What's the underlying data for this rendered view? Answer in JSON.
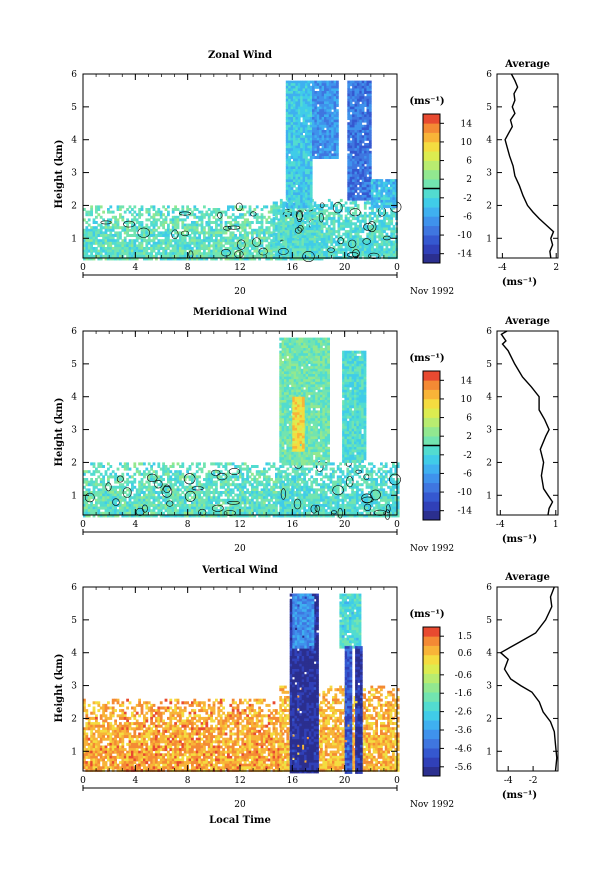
{
  "figure": {
    "date_label": "Nov 1992",
    "day_label": "20",
    "xlabel": "Local Time"
  },
  "chart_data": [
    {
      "type": "heatmap",
      "title": "Zonal Wind",
      "ylabel": "Height (km)",
      "xlabel": "",
      "x_ticks": [
        "0",
        "4",
        "8",
        "12",
        "16",
        "20",
        "0"
      ],
      "xlim": [
        0,
        24
      ],
      "y_ticks": [
        "1",
        "2",
        "3",
        "4",
        "5",
        "6"
      ],
      "ylim": [
        0.4,
        6.0
      ],
      "colorbar": {
        "unit_label": "(ms⁻¹)",
        "ticks": [
          "14",
          "10",
          "6",
          "2",
          "-2",
          "-6",
          "-10",
          "-14"
        ],
        "range": [
          -16,
          16
        ],
        "colors": [
          "#2b2f8f",
          "#3040b8",
          "#3558d0",
          "#3f76e0",
          "#3f92ec",
          "#3fb0f0",
          "#40cce8",
          "#52dcd0",
          "#72e4b0",
          "#92e890",
          "#b8ec70",
          "#dcec50",
          "#f4dc40",
          "#f8b438",
          "#f48a34",
          "#e84a30"
        ]
      },
      "contours": [
        0
      ],
      "regions": [
        {
          "x": [
            0,
            18.2
          ],
          "y": [
            0.4,
            2.0
          ],
          "value": 0,
          "texture": "scattered"
        },
        {
          "x": [
            14.5,
            24
          ],
          "y": [
            0.4,
            2.2
          ],
          "value": -1,
          "texture": "scattered"
        },
        {
          "x": [
            15.5,
            17.5
          ],
          "y": [
            2.0,
            5.8
          ],
          "value": -3,
          "texture": "columns"
        },
        {
          "x": [
            17.5,
            19.5
          ],
          "y": [
            3.5,
            5.8
          ],
          "value": -7,
          "texture": "columns"
        },
        {
          "x": [
            20.2,
            22.0
          ],
          "y": [
            2.2,
            5.8
          ],
          "value": -9,
          "texture": "columns"
        },
        {
          "x": [
            22.0,
            24
          ],
          "y": [
            2.0,
            2.8
          ],
          "value": -4,
          "texture": "columns"
        }
      ],
      "profile": {
        "title": "Average",
        "xlabel": "(ms⁻¹)",
        "x_ticks": [
          "-4",
          "2"
        ],
        "xlim": [
          -4.6,
          2.2
        ],
        "ylim": [
          0.4,
          6.0
        ],
        "y_ticks": [
          "1",
          "2",
          "3",
          "4",
          "5",
          "6"
        ],
        "points": [
          [
            1.4,
            0.4
          ],
          [
            1.3,
            0.6
          ],
          [
            1.6,
            0.8
          ],
          [
            1.4,
            1.0
          ],
          [
            1.7,
            1.2
          ],
          [
            0.9,
            1.4
          ],
          [
            0.1,
            1.6
          ],
          [
            -0.6,
            1.8
          ],
          [
            -1.2,
            2.0
          ],
          [
            -1.7,
            2.3
          ],
          [
            -2.1,
            2.6
          ],
          [
            -2.6,
            2.9
          ],
          [
            -2.8,
            3.2
          ],
          [
            -3.2,
            3.5
          ],
          [
            -3.5,
            3.8
          ],
          [
            -3.7,
            4.0
          ],
          [
            -3.3,
            4.2
          ],
          [
            -2.9,
            4.4
          ],
          [
            -3.1,
            4.6
          ],
          [
            -2.6,
            4.8
          ],
          [
            -2.9,
            5.0
          ],
          [
            -2.6,
            5.2
          ],
          [
            -2.7,
            5.4
          ],
          [
            -2.3,
            5.6
          ],
          [
            -2.6,
            5.8
          ],
          [
            -3.0,
            6.0
          ]
        ]
      }
    },
    {
      "type": "heatmap",
      "title": "Meridional Wind",
      "ylabel": "Height (km)",
      "xlabel": "",
      "x_ticks": [
        "0",
        "4",
        "8",
        "12",
        "16",
        "20",
        "0"
      ],
      "xlim": [
        0,
        24
      ],
      "y_ticks": [
        "1",
        "2",
        "3",
        "4",
        "5",
        "6"
      ],
      "ylim": [
        0.4,
        6.0
      ],
      "colorbar": {
        "unit_label": "(ms⁻¹)",
        "ticks": [
          "14",
          "10",
          "6",
          "2",
          "-2",
          "-6",
          "-10",
          "-14"
        ],
        "range": [
          -16,
          16
        ],
        "colors": [
          "#2b2f8f",
          "#3040b8",
          "#3558d0",
          "#3f76e0",
          "#3f92ec",
          "#3fb0f0",
          "#40cce8",
          "#52dcd0",
          "#72e4b0",
          "#92e890",
          "#b8ec70",
          "#dcec50",
          "#f4dc40",
          "#f8b438",
          "#f48a34",
          "#e84a30"
        ]
      },
      "contours": [
        0
      ],
      "regions": [
        {
          "x": [
            0,
            16.5
          ],
          "y": [
            0.4,
            2.0
          ],
          "value": 0,
          "texture": "scattered"
        },
        {
          "x": [
            15.0,
            24
          ],
          "y": [
            0.4,
            2.0
          ],
          "value": -1,
          "texture": "scattered"
        },
        {
          "x": [
            15.0,
            18.8
          ],
          "y": [
            2.0,
            5.8
          ],
          "value": 1,
          "texture": "columns"
        },
        {
          "x": [
            16.0,
            16.8
          ],
          "y": [
            2.4,
            4.0
          ],
          "value": 9,
          "texture": "columns"
        },
        {
          "x": [
            19.8,
            21.6
          ],
          "y": [
            2.0,
            5.4
          ],
          "value": -1,
          "texture": "columns"
        }
      ],
      "profile": {
        "title": "Average",
        "xlabel": "(ms⁻¹)",
        "x_ticks": [
          "-4",
          "1"
        ],
        "xlim": [
          -4.3,
          1.2
        ],
        "ylim": [
          0.4,
          6.0
        ],
        "y_ticks": [
          "1",
          "2",
          "3",
          "4",
          "5",
          "6"
        ],
        "points": [
          [
            0.3,
            0.4
          ],
          [
            0.4,
            0.6
          ],
          [
            0.7,
            0.8
          ],
          [
            0.3,
            1.0
          ],
          [
            -0.1,
            1.2
          ],
          [
            -0.3,
            1.6
          ],
          [
            -0.1,
            2.0
          ],
          [
            -0.4,
            2.4
          ],
          [
            0.1,
            2.8
          ],
          [
            0.4,
            3.0
          ],
          [
            0.0,
            3.3
          ],
          [
            -0.5,
            3.6
          ],
          [
            -0.5,
            4.0
          ],
          [
            -1.2,
            4.3
          ],
          [
            -2.0,
            4.6
          ],
          [
            -2.7,
            5.0
          ],
          [
            -3.3,
            5.4
          ],
          [
            -3.8,
            5.6
          ],
          [
            -3.5,
            5.7
          ],
          [
            -3.9,
            5.9
          ],
          [
            -3.4,
            6.0
          ]
        ]
      }
    },
    {
      "type": "heatmap",
      "title": "Vertical Wind",
      "ylabel": "Height (km)",
      "xlabel": "Local Time",
      "x_ticks": [
        "0",
        "4",
        "8",
        "12",
        "16",
        "20",
        "0"
      ],
      "xlim": [
        0,
        24
      ],
      "y_ticks": [
        "1",
        "2",
        "3",
        "4",
        "5",
        "6"
      ],
      "ylim": [
        0.4,
        6.0
      ],
      "colorbar": {
        "unit_label": "(ms⁻¹)",
        "ticks": [
          "1.5",
          "0.6",
          "-0.6",
          "-1.6",
          "-2.6",
          "-3.6",
          "-4.6",
          "-5.6"
        ],
        "range": [
          -6.1,
          2.0
        ],
        "colors": [
          "#2b2f8f",
          "#3040b8",
          "#3558d0",
          "#3f76e0",
          "#3f92ec",
          "#3fb0f0",
          "#40cce8",
          "#52dcd0",
          "#72e4b0",
          "#92e890",
          "#b8ec70",
          "#dcec50",
          "#f4dc40",
          "#f8b438",
          "#f48a34",
          "#e84a30"
        ]
      },
      "contours": [],
      "regions": [
        {
          "x": [
            0,
            15.2
          ],
          "y": [
            0.4,
            2.6
          ],
          "value": 0.9,
          "texture": "scattered"
        },
        {
          "x": [
            15.0,
            24
          ],
          "y": [
            0.4,
            3.0
          ],
          "value": 0.7,
          "texture": "scattered"
        },
        {
          "x": [
            15.8,
            18.0
          ],
          "y": [
            0.4,
            5.8
          ],
          "value": -5.8,
          "texture": "columns"
        },
        {
          "x": [
            16.0,
            17.6
          ],
          "y": [
            4.2,
            5.8
          ],
          "value": -3.8,
          "texture": "columns"
        },
        {
          "x": [
            19.6,
            21.2
          ],
          "y": [
            4.2,
            5.8
          ],
          "value": -2.4,
          "texture": "columns"
        },
        {
          "x": [
            20.0,
            20.4
          ],
          "y": [
            0.4,
            4.2
          ],
          "value": -4.8,
          "texture": "columns"
        },
        {
          "x": [
            20.8,
            21.3
          ],
          "y": [
            0.4,
            4.2
          ],
          "value": -5.6,
          "texture": "columns"
        }
      ],
      "profile": {
        "title": "Average",
        "xlabel": "(ms⁻¹)",
        "x_ticks": [
          "-4",
          "-2"
        ],
        "xlim": [
          -4.9,
          0.0
        ],
        "ylim": [
          0.4,
          6.0
        ],
        "y_ticks": [
          "1",
          "2",
          "3",
          "4",
          "5",
          "6"
        ],
        "points": [
          [
            -0.2,
            0.4
          ],
          [
            -0.1,
            0.8
          ],
          [
            -0.2,
            1.2
          ],
          [
            -0.3,
            1.6
          ],
          [
            -0.6,
            1.9
          ],
          [
            -1.2,
            2.2
          ],
          [
            -1.5,
            2.5
          ],
          [
            -2.1,
            2.8
          ],
          [
            -3.0,
            3.0
          ],
          [
            -3.8,
            3.2
          ],
          [
            -4.3,
            3.5
          ],
          [
            -4.0,
            3.8
          ],
          [
            -4.6,
            4.0
          ],
          [
            -3.2,
            4.3
          ],
          [
            -1.8,
            4.6
          ],
          [
            -1.0,
            5.0
          ],
          [
            -0.5,
            5.4
          ],
          [
            -0.6,
            5.7
          ],
          [
            -0.3,
            6.0
          ]
        ]
      }
    }
  ]
}
